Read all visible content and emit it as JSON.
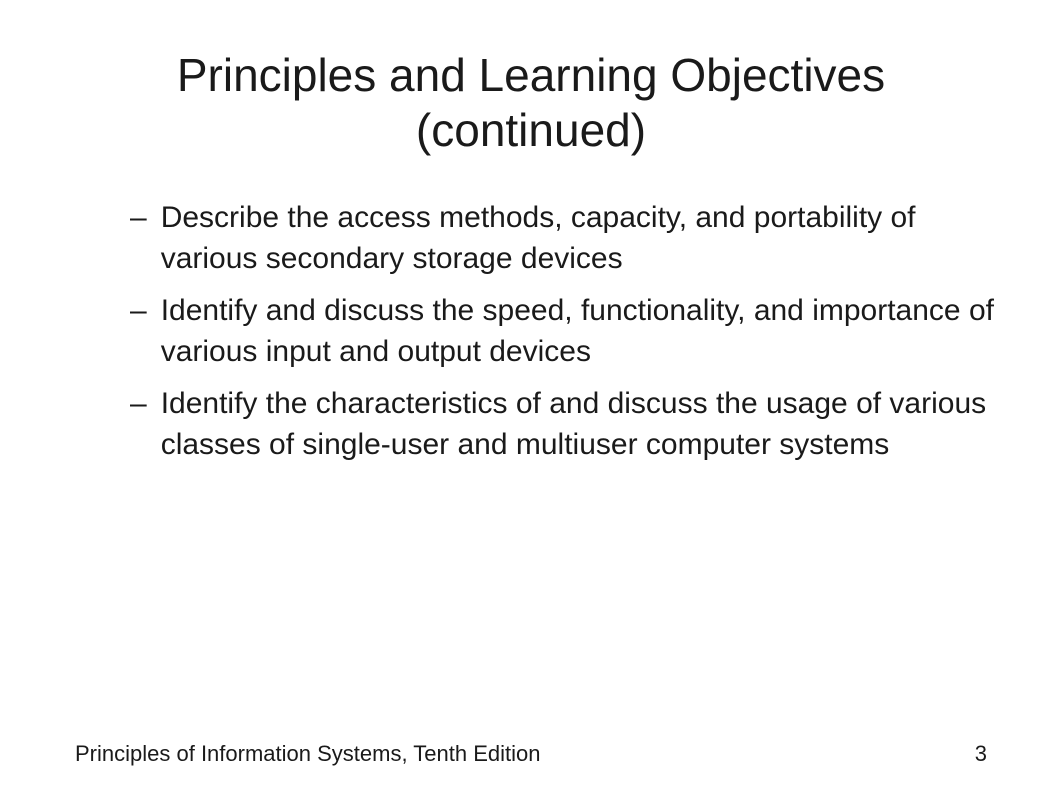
{
  "title": "Principles and Learning Objectives (continued)",
  "bullets": [
    {
      "dash": "–",
      "text": "Describe the access methods, capacity, and portability of various secondary storage devices"
    },
    {
      "dash": "–",
      "text": "Identify and discuss the speed, functionality, and importance of various input and output devices"
    },
    {
      "dash": "–",
      "text": "Identify the characteristics of and discuss the usage of various classes of single-user and multiuser computer systems"
    }
  ],
  "footer": {
    "book_title": "Principles of Information Systems, Tenth Edition",
    "page_number": "3"
  },
  "styling": {
    "background_color": "#ffffff",
    "text_color": "#1a1a1a",
    "title_fontsize": 46,
    "bullet_fontsize": 30,
    "footer_fontsize": 22,
    "font_family": "Arial, Helvetica, sans-serif"
  }
}
